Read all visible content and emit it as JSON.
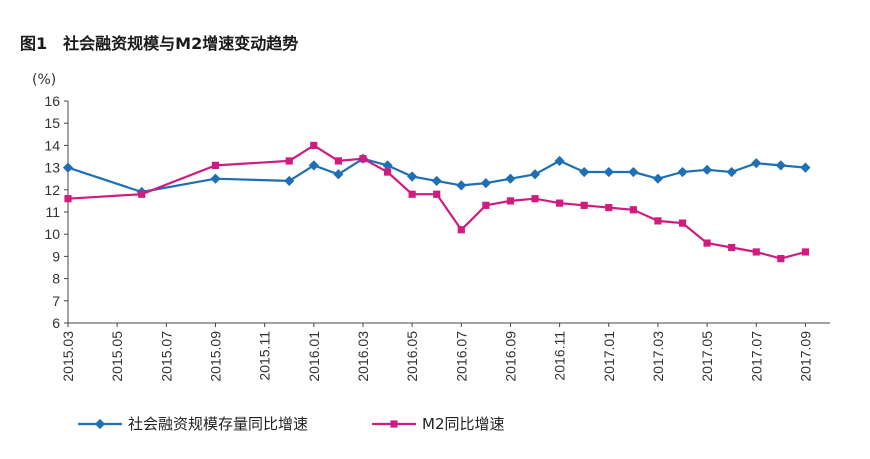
{
  "figure": {
    "number": "图1",
    "title": "社会融资规模与M2增速变动趋势"
  },
  "chart_data": {
    "type": "line",
    "unit_label": "(%)",
    "xlabel": "",
    "ylabel": "(%)",
    "ylim": [
      6,
      16
    ],
    "yticks": [
      6,
      7,
      8,
      9,
      10,
      11,
      12,
      13,
      14,
      15,
      16
    ],
    "x_tick_labels": [
      "2015.03",
      "2015.05",
      "2015.07",
      "2015.09",
      "2015.11",
      "2016.01",
      "2016.03",
      "2016.05",
      "2016.07",
      "2016.09",
      "2016.11",
      "2017.01",
      "2017.03",
      "2017.05",
      "2017.07",
      "2017.09"
    ],
    "grid": false,
    "legend_position": "bottom",
    "series": [
      {
        "name": "社会融资规模存量同比增速",
        "color": "#1f6fb5",
        "marker": "diamond",
        "points": [
          [
            "2015-03",
            13.0
          ],
          [
            "2015-06",
            11.9
          ],
          [
            "2015-09",
            12.5
          ],
          [
            "2015-12",
            12.4
          ],
          [
            "2016-01",
            13.1
          ],
          [
            "2016-02",
            12.7
          ],
          [
            "2016-03",
            13.4
          ],
          [
            "2016-04",
            13.1
          ],
          [
            "2016-05",
            12.6
          ],
          [
            "2016-06",
            12.4
          ],
          [
            "2016-07",
            12.2
          ],
          [
            "2016-08",
            12.3
          ],
          [
            "2016-09",
            12.5
          ],
          [
            "2016-10",
            12.7
          ],
          [
            "2016-11",
            13.3
          ],
          [
            "2016-12",
            12.8
          ],
          [
            "2017-01",
            12.8
          ],
          [
            "2017-02",
            12.8
          ],
          [
            "2017-03",
            12.5
          ],
          [
            "2017-04",
            12.8
          ],
          [
            "2017-05",
            12.9
          ],
          [
            "2017-06",
            12.8
          ],
          [
            "2017-07",
            13.2
          ],
          [
            "2017-08",
            13.1
          ],
          [
            "2017-09",
            13.0
          ]
        ]
      },
      {
        "name": "M2同比增速",
        "color": "#d11c7f",
        "marker": "square",
        "points": [
          [
            "2015-03",
            11.6
          ],
          [
            "2015-06",
            11.8
          ],
          [
            "2015-09",
            13.1
          ],
          [
            "2015-12",
            13.3
          ],
          [
            "2016-01",
            14.0
          ],
          [
            "2016-02",
            13.3
          ],
          [
            "2016-03",
            13.4
          ],
          [
            "2016-04",
            12.8
          ],
          [
            "2016-05",
            11.8
          ],
          [
            "2016-06",
            11.8
          ],
          [
            "2016-07",
            10.2
          ],
          [
            "2016-08",
            11.3
          ],
          [
            "2016-09",
            11.5
          ],
          [
            "2016-10",
            11.6
          ],
          [
            "2016-11",
            11.4
          ],
          [
            "2016-12",
            11.3
          ],
          [
            "2017-01",
            11.2
          ],
          [
            "2017-02",
            11.1
          ],
          [
            "2017-03",
            10.6
          ],
          [
            "2017-04",
            10.5
          ],
          [
            "2017-05",
            9.6
          ],
          [
            "2017-06",
            9.4
          ],
          [
            "2017-07",
            9.2
          ],
          [
            "2017-08",
            8.9
          ],
          [
            "2017-09",
            9.2
          ]
        ]
      }
    ]
  }
}
